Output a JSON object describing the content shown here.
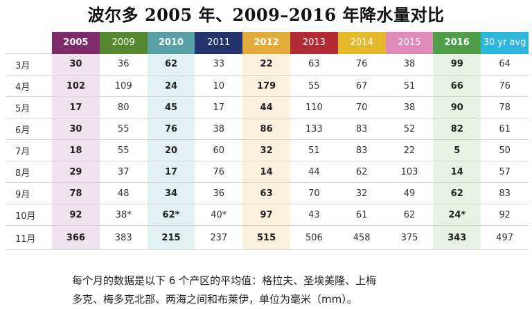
{
  "title": "波尔多 2005 年、2009–2016 年降水量对比",
  "table": {
    "columns": [
      {
        "label": "2005",
        "color": "#7f2a6a",
        "tint": "#eee3ec",
        "bold": true
      },
      {
        "label": "2009",
        "color": "#56892f",
        "tint": null,
        "bold": false
      },
      {
        "label": "2010",
        "color": "#58a2a7",
        "tint": "#e2f0f1",
        "bold": true
      },
      {
        "label": "2011",
        "color": "#23336e",
        "tint": null,
        "bold": false
      },
      {
        "label": "2012",
        "color": "#e2ab3b",
        "tint": "#faf1dc",
        "bold": true
      },
      {
        "label": "2013",
        "color": "#b12c35",
        "tint": null,
        "bold": false
      },
      {
        "label": "2014",
        "color": "#e6b92a",
        "tint": null,
        "bold": false
      },
      {
        "label": "2015",
        "color": "#e08bb8",
        "tint": null,
        "bold": false
      },
      {
        "label": "2016",
        "color": "#4f9f48",
        "tint": "#e7f2e4",
        "bold": true
      },
      {
        "label": "30 yr avg",
        "color": "#2fb6dd",
        "tint": null,
        "bold": false
      }
    ],
    "rows": [
      {
        "month": "3月",
        "values": [
          "30",
          "36",
          "62",
          "33",
          "22",
          "63",
          "76",
          "38",
          "99",
          "64"
        ]
      },
      {
        "month": "4月",
        "values": [
          "102",
          "109",
          "24",
          "10",
          "179",
          "55",
          "67",
          "51",
          "66",
          "76"
        ]
      },
      {
        "month": "5月",
        "values": [
          "17",
          "80",
          "45",
          "17",
          "44",
          "110",
          "70",
          "38",
          "90",
          "78"
        ]
      },
      {
        "month": "6月",
        "values": [
          "30",
          "55",
          "76",
          "38",
          "86",
          "133",
          "83",
          "52",
          "82",
          "61"
        ]
      },
      {
        "month": "7月",
        "values": [
          "18",
          "55",
          "20",
          "60",
          "32",
          "51",
          "83",
          "22",
          "5",
          "50"
        ]
      },
      {
        "month": "8月",
        "values": [
          "29",
          "37",
          "17",
          "76",
          "14",
          "44",
          "62",
          "103",
          "14",
          "57"
        ]
      },
      {
        "month": "9月",
        "values": [
          "78",
          "48",
          "34",
          "36",
          "63",
          "70",
          "32",
          "49",
          "62",
          "83"
        ]
      },
      {
        "month": "10月",
        "values": [
          "92",
          "38*",
          "62*",
          "40*",
          "97",
          "43",
          "61",
          "62",
          "24*",
          "92"
        ]
      },
      {
        "month": "11月",
        "values": [
          "366",
          "383",
          "215",
          "237",
          "515",
          "506",
          "458",
          "375",
          "343",
          "497"
        ]
      }
    ]
  },
  "footnote": {
    "line1": "每个月的数据是以下 6 个产区的平均值：格拉夫、圣埃美隆、上梅",
    "line2": "多克、梅多克北部、两海之间和布莱伊，单位为毫米（mm）。"
  }
}
